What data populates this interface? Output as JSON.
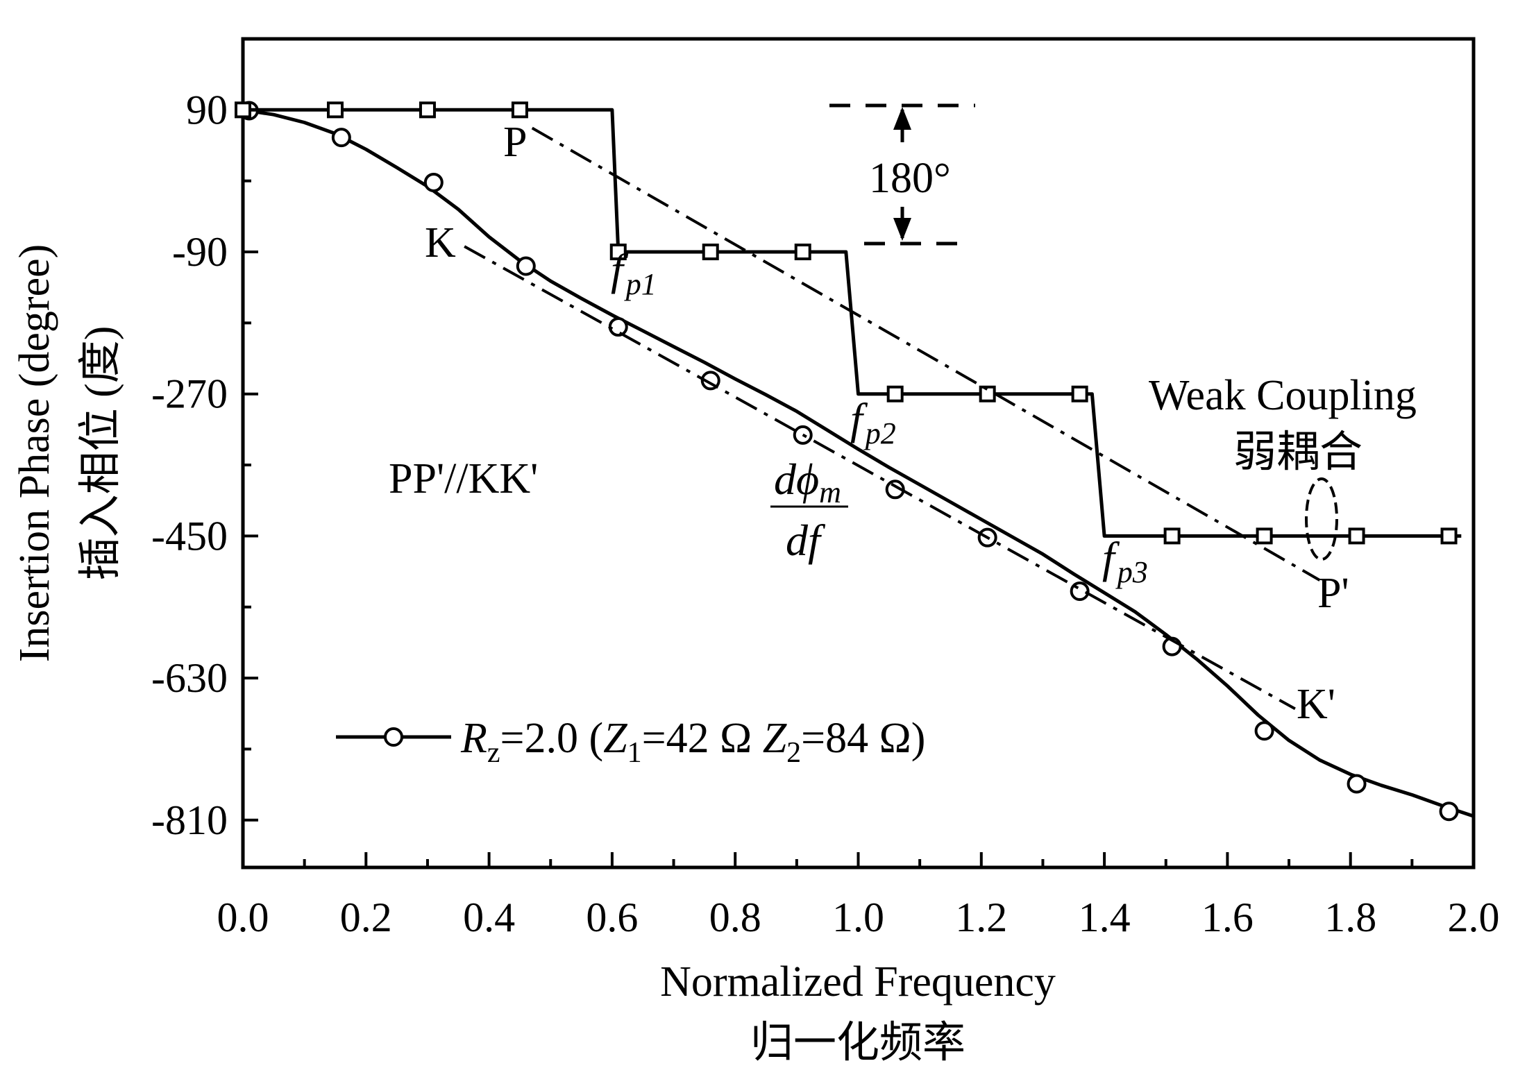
{
  "chart_data": {
    "type": "line",
    "xlabel": "Normalized Frequency",
    "xlabel_cn": "归一化频率",
    "ylabel": "Insertion Phase (degree)",
    "ylabel_cn": "插入相位 (度)",
    "xlim": [
      0.0,
      2.0
    ],
    "ylim": [
      -870,
      180
    ],
    "x_ticks": [
      0.0,
      0.2,
      0.4,
      0.6,
      0.8,
      1.0,
      1.2,
      1.4,
      1.6,
      1.8,
      2.0
    ],
    "x_tick_labels": [
      "0.0",
      "0.2",
      "0.4",
      "0.6",
      "0.8",
      "1.0",
      "1.2",
      "1.4",
      "1.6",
      "1.8",
      "2.0"
    ],
    "y_ticks": [
      90,
      -90,
      -270,
      -450,
      -630,
      -810
    ],
    "y_tick_labels": [
      "90",
      "-90",
      "-270",
      "-450",
      "-630",
      "-810"
    ],
    "grid": false,
    "legend_position": "bottom-left",
    "series": [
      {
        "name": "Rz=2.0 (Z1=42 Ω Z2=84 Ω)",
        "marker": "circle",
        "style": "solid",
        "x": [
          0.0,
          0.05,
          0.1,
          0.15,
          0.2,
          0.25,
          0.3,
          0.35,
          0.4,
          0.45,
          0.5,
          0.55,
          0.6,
          0.65,
          0.7,
          0.75,
          0.8,
          0.85,
          0.9,
          0.95,
          1.0,
          1.05,
          1.1,
          1.15,
          1.2,
          1.25,
          1.3,
          1.35,
          1.4,
          1.45,
          1.5,
          1.55,
          1.6,
          1.65,
          1.7,
          1.75,
          1.8,
          1.85,
          1.9,
          1.95,
          2.0
        ],
        "y": [
          90,
          84,
          74,
          60,
          40,
          17,
          -7,
          -36,
          -71,
          -101,
          -127,
          -149,
          -170,
          -190,
          -210,
          -230,
          -251,
          -271,
          -292,
          -316,
          -340,
          -363,
          -385,
          -407,
          -429,
          -451,
          -473,
          -498,
          -522,
          -546,
          -575,
          -606,
          -640,
          -677,
          -709,
          -734,
          -752,
          -766,
          -778,
          -792,
          -805
        ],
        "markers_x": [
          0.01,
          0.16,
          0.31,
          0.46,
          0.61,
          0.76,
          0.91,
          1.06,
          1.21,
          1.36,
          1.51,
          1.66,
          1.81,
          1.96
        ],
        "markers_y": [
          89,
          55,
          -2,
          -108,
          -185,
          -253,
          -322,
          -391,
          -452,
          -520,
          -590,
          -697,
          -764,
          -799
        ]
      },
      {
        "name": "",
        "marker": "square",
        "style": "solid",
        "x": [
          0.0,
          0.6,
          0.61,
          0.98,
          1.0,
          1.38,
          1.4,
          1.98
        ],
        "y": [
          90,
          90,
          -90,
          -90,
          -270,
          -270,
          -450,
          -450
        ],
        "markers_x": [
          0.0,
          0.15,
          0.3,
          0.45,
          0.61,
          0.76,
          0.91,
          1.06,
          1.21,
          1.36,
          1.51,
          1.66,
          1.81,
          1.96
        ],
        "markers_y": [
          90,
          90,
          90,
          90,
          -90,
          -90,
          -90,
          -270,
          -270,
          -270,
          -450,
          -450,
          -450,
          -450
        ]
      },
      {
        "name": "",
        "style": "dash-dot",
        "x": [
          0.47,
          1.75
        ],
        "y": [
          67,
          -506
        ]
      },
      {
        "name": "",
        "style": "dash-dot",
        "x": [
          0.36,
          1.71
        ],
        "y": [
          -83,
          -669
        ]
      }
    ],
    "annotations": {
      "P": "P",
      "P_prime": "P'",
      "K": "K",
      "K_prime": "K'",
      "parallel": "PP'//KK'",
      "step": "180°",
      "f": "f",
      "fp1_sub": "p1",
      "fp2_sub": "p2",
      "fp3_sub": "p3",
      "deriv_num": "dϕ",
      "deriv_num_sub": "m",
      "deriv_den": "df",
      "weak_coupling": "Weak Coupling",
      "weak_coupling_cn": "弱耦合"
    },
    "legend": {
      "R": "R",
      "R_sub": "z",
      "text1": "=2.0 (",
      "Z1": "Z",
      "Z1_sub": "1",
      "text2": "=42 Ω ",
      "Z2": "Z",
      "Z2_sub": "2",
      "text3": "=84 Ω)"
    }
  }
}
